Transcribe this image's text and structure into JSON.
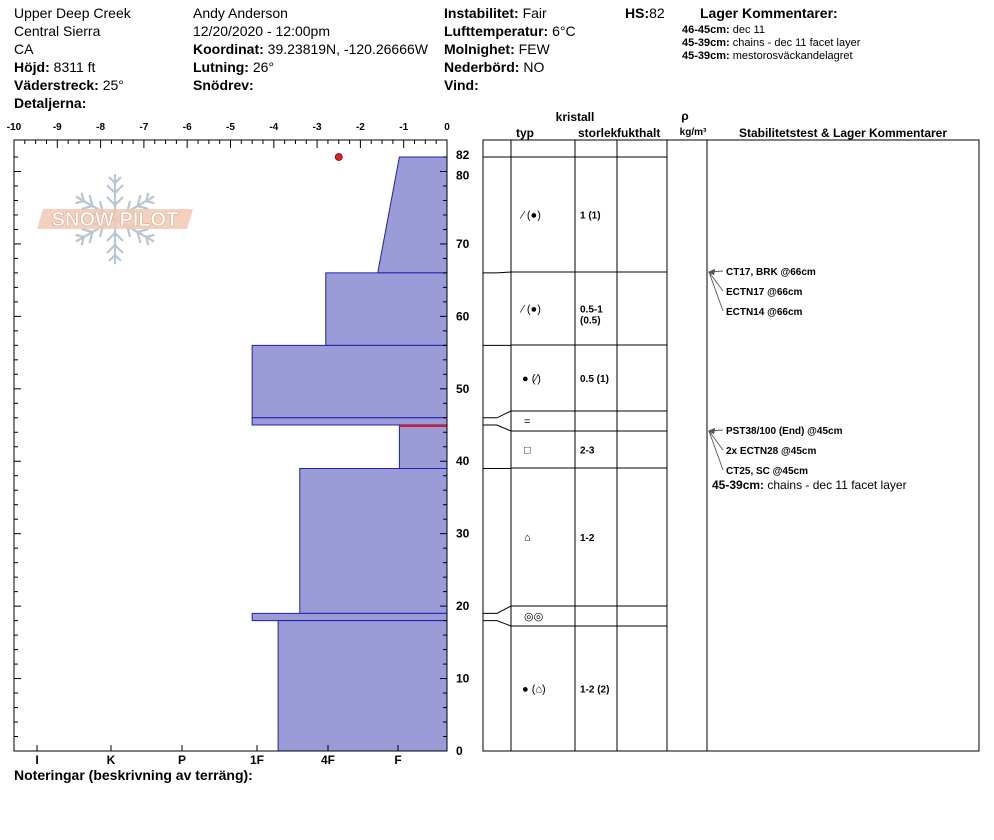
{
  "header": {
    "location": "Upper Deep Creek",
    "range": "Central Sierra",
    "state": "CA",
    "elevation_label": "Höjd:",
    "elevation_value": "8311 ft",
    "aspect_label": "Väderstreck:",
    "aspect_value": "25°",
    "details_label": "Detaljerna:",
    "observer": "Andy Anderson",
    "datetime": "12/20/2020 - 12:00pm",
    "coord_label": "Koordinat:",
    "coord_value": "39.23819N, -120.26666W",
    "slope_label": "Lutning:",
    "slope_value": "26°",
    "drift_label": "Snödrev:",
    "instability_label": "Instabilitet:",
    "instability_value": "Fair",
    "airtemp_label": "Lufttemperatur:",
    "airtemp_value": "6°C",
    "cloud_label": "Molnighet:",
    "cloud_value": "FEW",
    "precip_label": "Nederbörd:",
    "precip_value": "NO",
    "wind_label": "Vind:",
    "hs_label": "HS:",
    "hs_value": "82",
    "layer_comments_title": "Lager Kommentarer:",
    "layer_comments": [
      {
        "range": "46-45cm:",
        "text": "dec 11"
      },
      {
        "range": "45-39cm:",
        "text": "chains - dec 11 facet layer"
      },
      {
        "range": "45-39cm:",
        "text": "mestorosväckandelagret"
      }
    ]
  },
  "logo": {
    "text": "SNOW PILOT"
  },
  "footer": {
    "notes_label": "Noteringar (beskrivning av terräng):"
  },
  "chart_data": {
    "type": "area",
    "x_ticks": [
      "-10",
      "-9",
      "-8",
      "-7",
      "-6",
      "-5",
      "-4",
      "-3",
      "-2",
      "-1",
      "0"
    ],
    "xlim": [
      -10,
      0
    ],
    "ylim": [
      0,
      82
    ],
    "y_ticks": [
      "0",
      "10",
      "20",
      "30",
      "40",
      "50",
      "60",
      "70",
      "80",
      "82"
    ],
    "hardness_ticks": [
      "I",
      "K",
      "P",
      "1F",
      "4F",
      "F"
    ],
    "temperature_point": {
      "depth": 82,
      "temp": -2.5
    },
    "red_line_depth": 45,
    "hardness_profile": [
      {
        "bottom": 66,
        "top": 82,
        "x_bottom": -1.6,
        "x_top": -1.1
      },
      {
        "bottom": 56,
        "top": 66,
        "x_bottom": -2.8,
        "x_top": -2.8
      },
      {
        "bottom": 46,
        "top": 56,
        "x_bottom": -4.5,
        "x_top": -4.5
      },
      {
        "bottom": 45,
        "top": 46,
        "x_bottom": -4.5,
        "x_top": -4.5
      },
      {
        "bottom": 39,
        "top": 45,
        "x_bottom": -1.1,
        "x_top": -1.1
      },
      {
        "bottom": 19,
        "top": 39,
        "x_bottom": -3.4,
        "x_top": -3.4
      },
      {
        "bottom": 18,
        "top": 19,
        "x_bottom": -4.5,
        "x_top": -4.5
      },
      {
        "bottom": 0,
        "top": 18,
        "x_bottom": -3.9,
        "x_top": -3.9
      }
    ],
    "table_headers": {
      "kristall": "kristall",
      "typ": "typ",
      "storlek": "storlek",
      "fukthalt": "fukthalt",
      "rho": "ρ",
      "density_unit": "kg/m³",
      "stab": "Stabilitetstest & Lager Kommentarer"
    },
    "layers": [
      {
        "top": 82,
        "bottom": 66,
        "typ": "⁄ (●)",
        "size": [
          "1 (1)"
        ]
      },
      {
        "top": 66,
        "bottom": 56,
        "typ": "⁄ (●)",
        "size": [
          "0.5-1",
          "(0.5)"
        ]
      },
      {
        "top": 56,
        "bottom": 46,
        "typ": "● (⁄)",
        "size": [
          "0.5 (1)"
        ]
      },
      {
        "top": 46,
        "bottom": 45,
        "typ": "=",
        "size": []
      },
      {
        "top": 45,
        "bottom": 39,
        "typ": "□",
        "size": [
          "2-3"
        ]
      },
      {
        "top": 39,
        "bottom": 19,
        "typ": "⌂",
        "size": [
          "1-2"
        ]
      },
      {
        "top": 19,
        "bottom": 18,
        "typ": "◎◎",
        "size": []
      },
      {
        "top": 18,
        "bottom": 0,
        "typ": "● (⌂)",
        "size": [
          "1-2 (2)"
        ]
      }
    ],
    "stability_tests": [
      {
        "depth": 66,
        "labels": [
          "CT17, BRK @66cm",
          "ECTN17 @66cm",
          "ECTN14 @66cm"
        ]
      },
      {
        "depth": 45,
        "labels": [
          "PST38/100 (End) @45cm",
          "2x ECTN28 @45cm",
          "CT25, SC @45cm"
        ]
      }
    ],
    "stab_comment": {
      "range": "45-39cm:",
      "text": "chains - dec 11 facet layer"
    }
  }
}
